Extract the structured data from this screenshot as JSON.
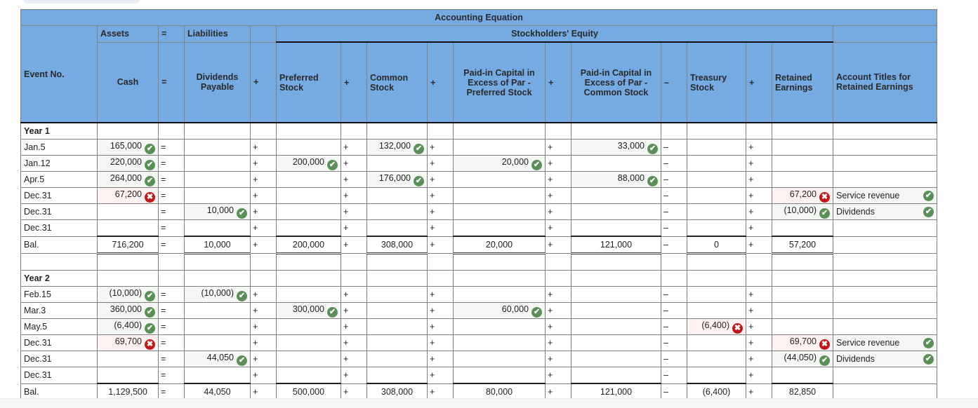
{
  "colors": {
    "header_bg": "#76aae3",
    "correct": "#5a8f57",
    "incorrect": "#c0191b"
  },
  "header": {
    "title": "Accounting Equation",
    "assets": "Assets",
    "eq": "=",
    "liabilities": "Liabilities",
    "equity": "Stockholders' Equity",
    "columns": {
      "event": "Event No.",
      "cash": "Cash",
      "eq": "=",
      "div_payable": "Dividends Payable",
      "plus": "+",
      "pref_stock": "Preferred Stock",
      "common_stock": "Common Stock",
      "pic_pref": "Paid-in Capital in Excess of Par - Preferred Stock",
      "pic_common": "Paid-in Capital in Excess of Par - Common Stock",
      "minus": "–",
      "treasury": "Treasury Stock",
      "retained": "Retained Earnings",
      "acct_titles": "Account Titles for Retained Earnings"
    }
  },
  "ops": {
    "eq": "=",
    "plus": "+",
    "minus": "–"
  },
  "year1": {
    "label": "Year 1",
    "rows": [
      {
        "event": "Jan.5",
        "cash": "165,000",
        "cash_s": "ok",
        "div": "",
        "pref": "",
        "common": "132,000",
        "common_s": "ok",
        "picp": "",
        "picc": "33,000",
        "picc_s": "ok",
        "treas": "",
        "re": "",
        "acct": ""
      },
      {
        "event": "Jan.12",
        "cash": "220,000",
        "cash_s": "ok",
        "div": "",
        "pref": "200,000",
        "pref_s": "ok",
        "common": "",
        "picp": "20,000",
        "picp_s": "ok",
        "picc": "",
        "treas": "",
        "re": "",
        "acct": ""
      },
      {
        "event": "Apr.5",
        "cash": "264,000",
        "cash_s": "ok",
        "div": "",
        "pref": "",
        "common": "176,000",
        "common_s": "ok",
        "picp": "",
        "picc": "88,000",
        "picc_s": "ok",
        "treas": "",
        "re": "",
        "acct": ""
      },
      {
        "event": "Dec.31",
        "cash": "67,200",
        "cash_s": "x",
        "div": "",
        "pref": "",
        "common": "",
        "picp": "",
        "picc": "",
        "treas": "",
        "re": "67,200",
        "re_s": "x",
        "acct": "Service revenue",
        "acct_s": "ok"
      },
      {
        "event": "Dec.31",
        "cash": "",
        "div": "10,000",
        "div_s": "ok",
        "pref": "",
        "common": "",
        "picp": "",
        "picc": "",
        "treas": "",
        "re": "(10,000)",
        "re_s": "ok",
        "acct": "Dividends",
        "acct_s": "ok"
      },
      {
        "event": "Dec.31",
        "cash": "",
        "div": "",
        "pref": "",
        "common": "",
        "picp": "",
        "picc": "",
        "treas": "",
        "re": "",
        "acct": ""
      }
    ],
    "balance": {
      "event": "Bal.",
      "cash": "716,200",
      "div": "10,000",
      "pref": "200,000",
      "common": "308,000",
      "picp": "20,000",
      "picc": "121,000",
      "treas": "0",
      "re": "57,200"
    }
  },
  "year2": {
    "label": "Year 2",
    "rows": [
      {
        "event": "Feb.15",
        "cash": "(10,000)",
        "cash_s": "ok",
        "div": "(10,000)",
        "div_s": "ok",
        "pref": "",
        "common": "",
        "picp": "",
        "picc": "",
        "treas": "",
        "re": "",
        "acct": ""
      },
      {
        "event": "Mar.3",
        "cash": "360,000",
        "cash_s": "ok",
        "div": "",
        "pref": "300,000",
        "pref_s": "ok",
        "common": "",
        "picp": "60,000",
        "picp_s": "ok",
        "picc": "",
        "treas": "",
        "re": "",
        "acct": ""
      },
      {
        "event": "May.5",
        "cash": "(6,400)",
        "cash_s": "ok",
        "div": "",
        "pref": "",
        "common": "",
        "picp": "",
        "picc": "",
        "treas": "(6,400)",
        "treas_s": "x",
        "re": "",
        "acct": ""
      },
      {
        "event": "Dec.31",
        "cash": "69,700",
        "cash_s": "x",
        "div": "",
        "pref": "",
        "common": "",
        "picp": "",
        "picc": "",
        "treas": "",
        "re": "69,700",
        "re_s": "x",
        "acct": "Service revenue",
        "acct_s": "ok"
      },
      {
        "event": "Dec.31",
        "cash": "",
        "div": "44,050",
        "div_s": "ok",
        "pref": "",
        "common": "",
        "picp": "",
        "picc": "",
        "treas": "",
        "re": "(44,050)",
        "re_s": "ok",
        "acct": "Dividends",
        "acct_s": "ok"
      },
      {
        "event": "Dec.31",
        "cash": "",
        "div": "",
        "pref": "",
        "common": "",
        "picp": "",
        "picc": "",
        "treas": "",
        "re": "",
        "acct": ""
      }
    ],
    "balance": {
      "event": "Bal.",
      "cash": "1,129,500",
      "div": "44,050",
      "pref": "500,000",
      "common": "308,000",
      "picp": "80,000",
      "picc": "121,000",
      "treas": "(6,400)",
      "re": "82,850"
    }
  }
}
